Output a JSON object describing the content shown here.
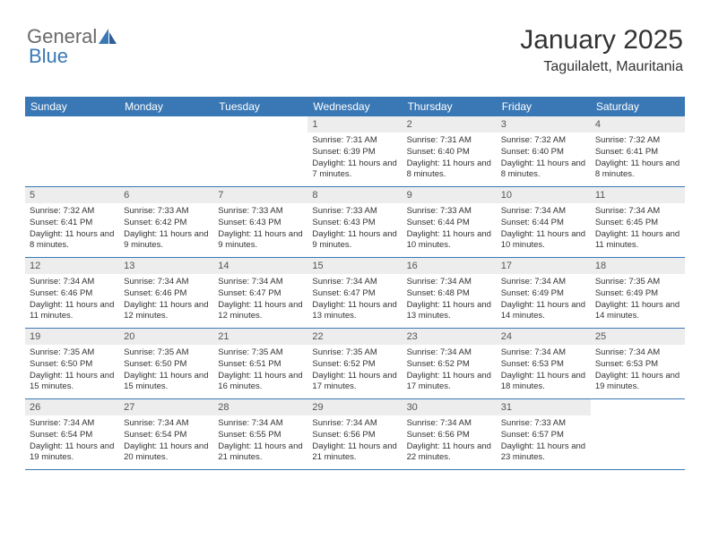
{
  "logo": {
    "text1": "General",
    "text2": "Blue"
  },
  "title": "January 2025",
  "location": "Taguilalett, Mauritania",
  "colors": {
    "header_bg": "#3a78b5",
    "header_text": "#ffffff",
    "daynum_bg": "#ededed",
    "daynum_text": "#555555",
    "body_text": "#333333",
    "rule": "#3a78b5"
  },
  "dayNames": [
    "Sunday",
    "Monday",
    "Tuesday",
    "Wednesday",
    "Thursday",
    "Friday",
    "Saturday"
  ],
  "weeks": [
    [
      null,
      null,
      null,
      {
        "n": "1",
        "sr": "7:31 AM",
        "ss": "6:39 PM",
        "dl": "11 hours and 7 minutes."
      },
      {
        "n": "2",
        "sr": "7:31 AM",
        "ss": "6:40 PM",
        "dl": "11 hours and 8 minutes."
      },
      {
        "n": "3",
        "sr": "7:32 AM",
        "ss": "6:40 PM",
        "dl": "11 hours and 8 minutes."
      },
      {
        "n": "4",
        "sr": "7:32 AM",
        "ss": "6:41 PM",
        "dl": "11 hours and 8 minutes."
      }
    ],
    [
      {
        "n": "5",
        "sr": "7:32 AM",
        "ss": "6:41 PM",
        "dl": "11 hours and 8 minutes."
      },
      {
        "n": "6",
        "sr": "7:33 AM",
        "ss": "6:42 PM",
        "dl": "11 hours and 9 minutes."
      },
      {
        "n": "7",
        "sr": "7:33 AM",
        "ss": "6:43 PM",
        "dl": "11 hours and 9 minutes."
      },
      {
        "n": "8",
        "sr": "7:33 AM",
        "ss": "6:43 PM",
        "dl": "11 hours and 9 minutes."
      },
      {
        "n": "9",
        "sr": "7:33 AM",
        "ss": "6:44 PM",
        "dl": "11 hours and 10 minutes."
      },
      {
        "n": "10",
        "sr": "7:34 AM",
        "ss": "6:44 PM",
        "dl": "11 hours and 10 minutes."
      },
      {
        "n": "11",
        "sr": "7:34 AM",
        "ss": "6:45 PM",
        "dl": "11 hours and 11 minutes."
      }
    ],
    [
      {
        "n": "12",
        "sr": "7:34 AM",
        "ss": "6:46 PM",
        "dl": "11 hours and 11 minutes."
      },
      {
        "n": "13",
        "sr": "7:34 AM",
        "ss": "6:46 PM",
        "dl": "11 hours and 12 minutes."
      },
      {
        "n": "14",
        "sr": "7:34 AM",
        "ss": "6:47 PM",
        "dl": "11 hours and 12 minutes."
      },
      {
        "n": "15",
        "sr": "7:34 AM",
        "ss": "6:47 PM",
        "dl": "11 hours and 13 minutes."
      },
      {
        "n": "16",
        "sr": "7:34 AM",
        "ss": "6:48 PM",
        "dl": "11 hours and 13 minutes."
      },
      {
        "n": "17",
        "sr": "7:34 AM",
        "ss": "6:49 PM",
        "dl": "11 hours and 14 minutes."
      },
      {
        "n": "18",
        "sr": "7:35 AM",
        "ss": "6:49 PM",
        "dl": "11 hours and 14 minutes."
      }
    ],
    [
      {
        "n": "19",
        "sr": "7:35 AM",
        "ss": "6:50 PM",
        "dl": "11 hours and 15 minutes."
      },
      {
        "n": "20",
        "sr": "7:35 AM",
        "ss": "6:50 PM",
        "dl": "11 hours and 15 minutes."
      },
      {
        "n": "21",
        "sr": "7:35 AM",
        "ss": "6:51 PM",
        "dl": "11 hours and 16 minutes."
      },
      {
        "n": "22",
        "sr": "7:35 AM",
        "ss": "6:52 PM",
        "dl": "11 hours and 17 minutes."
      },
      {
        "n": "23",
        "sr": "7:34 AM",
        "ss": "6:52 PM",
        "dl": "11 hours and 17 minutes."
      },
      {
        "n": "24",
        "sr": "7:34 AM",
        "ss": "6:53 PM",
        "dl": "11 hours and 18 minutes."
      },
      {
        "n": "25",
        "sr": "7:34 AM",
        "ss": "6:53 PM",
        "dl": "11 hours and 19 minutes."
      }
    ],
    [
      {
        "n": "26",
        "sr": "7:34 AM",
        "ss": "6:54 PM",
        "dl": "11 hours and 19 minutes."
      },
      {
        "n": "27",
        "sr": "7:34 AM",
        "ss": "6:54 PM",
        "dl": "11 hours and 20 minutes."
      },
      {
        "n": "28",
        "sr": "7:34 AM",
        "ss": "6:55 PM",
        "dl": "11 hours and 21 minutes."
      },
      {
        "n": "29",
        "sr": "7:34 AM",
        "ss": "6:56 PM",
        "dl": "11 hours and 21 minutes."
      },
      {
        "n": "30",
        "sr": "7:34 AM",
        "ss": "6:56 PM",
        "dl": "11 hours and 22 minutes."
      },
      {
        "n": "31",
        "sr": "7:33 AM",
        "ss": "6:57 PM",
        "dl": "11 hours and 23 minutes."
      },
      null
    ]
  ],
  "labels": {
    "sunrise": "Sunrise:",
    "sunset": "Sunset:",
    "daylight": "Daylight:"
  }
}
